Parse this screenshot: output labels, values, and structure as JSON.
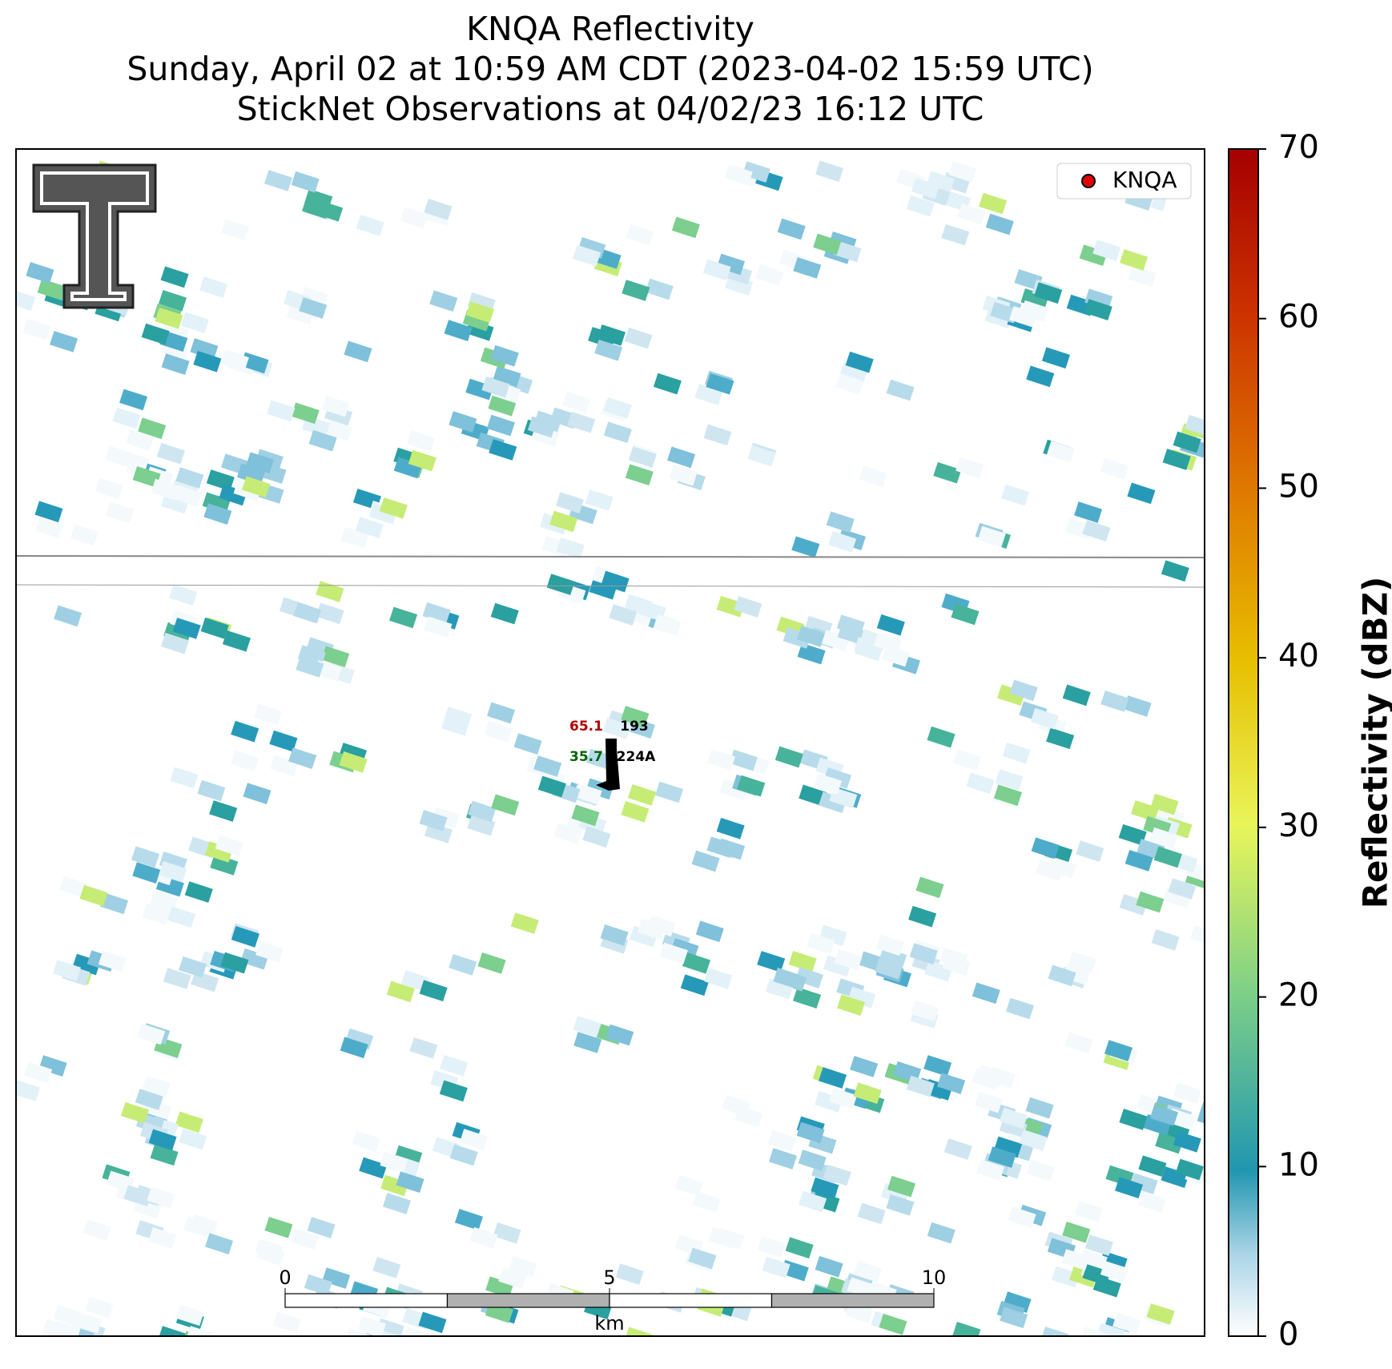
{
  "header": {
    "title": [
      "KNQA Reflectivity",
      "Sunday, April 02 at 10:59 AM CDT (2023-04-02 15:59 UTC)",
      "StickNet Observations at 04/02/23 16:12 UTC"
    ]
  },
  "legend": {
    "label": "KNQA"
  },
  "colorbar": {
    "label": "Reflectivity (dBZ)",
    "lim": [
      0,
      70
    ],
    "ticks": [
      0,
      10,
      20,
      30,
      40,
      50,
      60,
      70
    ]
  },
  "scale_bar": {
    "lim": [
      0,
      10
    ],
    "ticks": [
      0,
      5,
      10
    ],
    "unit": "km"
  },
  "station": {
    "id": "224A",
    "temperature": 65.1,
    "dewpoint": 35.7,
    "wind_direction": 193
  }
}
